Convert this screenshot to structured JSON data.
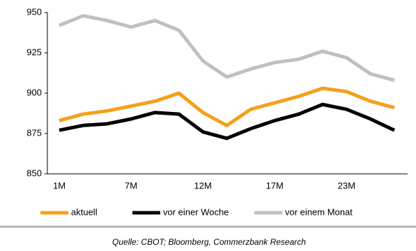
{
  "chart_data": {
    "type": "line",
    "categories": [
      "1M",
      null,
      null,
      "7M",
      null,
      null,
      "12M",
      null,
      null,
      "17M",
      null,
      null,
      "23M",
      null,
      null
    ],
    "series": [
      {
        "name": "aktuell",
        "color": "#f5a01a",
        "values": [
          883,
          887,
          889,
          892,
          895,
          900,
          888,
          880,
          890,
          894,
          898,
          903,
          901,
          895,
          891
        ]
      },
      {
        "name": "vor einer Woche",
        "color": "#000000",
        "values": [
          877,
          880,
          881,
          884,
          888,
          887,
          876,
          872,
          878,
          883,
          887,
          893,
          890,
          884,
          877
        ]
      },
      {
        "name": "vor einem Monat",
        "color": "#c0c0c0",
        "values": [
          942,
          948,
          945,
          941,
          945,
          939,
          920,
          910,
          915,
          919,
          921,
          926,
          922,
          912,
          908
        ]
      }
    ],
    "ylim": [
      850,
      950
    ],
    "yticks": [
      850,
      875,
      900,
      925,
      950
    ],
    "source": "Quelle: CBOT; Bloomberg, Commerzbank Research"
  }
}
